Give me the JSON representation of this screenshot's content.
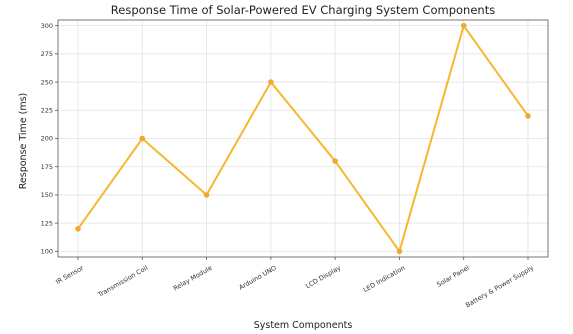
{
  "chart_data": {
    "type": "line",
    "title": "Response Time of Solar-Powered EV Charging System Components",
    "xlabel": "System Components",
    "ylabel": "Response Time (ms)",
    "categories": [
      "IR Sensor",
      "Transmission Coil",
      "Relay Module",
      "Arduino UNO",
      "LCD Display",
      "LED Indication",
      "Solar Panel",
      "Battery & Power Supply"
    ],
    "series": [
      {
        "values": [
          120,
          200,
          150,
          250,
          180,
          100,
          300,
          220
        ]
      }
    ],
    "ylim": [
      95,
      305
    ],
    "yticks": [
      100,
      125,
      150,
      175,
      200,
      225,
      250,
      275,
      300
    ],
    "ytick_labels": [
      "100",
      "125",
      "150",
      "175",
      "200",
      "225",
      "250",
      "275",
      "300"
    ],
    "grid": true,
    "colors": {
      "line": "#f5b82e",
      "marker": "#f0a830"
    }
  }
}
